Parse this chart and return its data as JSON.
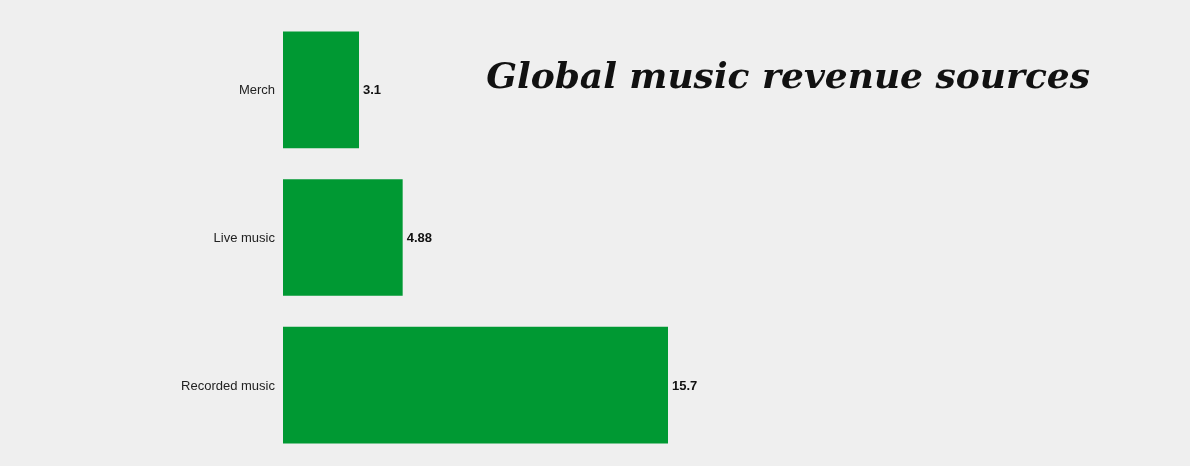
{
  "chart_data": {
    "type": "bar",
    "orientation": "horizontal",
    "title": "Global music revenue sources",
    "categories": [
      "Merch",
      "Live music",
      "Recorded music"
    ],
    "values": [
      3.1,
      4.88,
      15.7
    ],
    "color": "#009933",
    "data_labels": true
  }
}
